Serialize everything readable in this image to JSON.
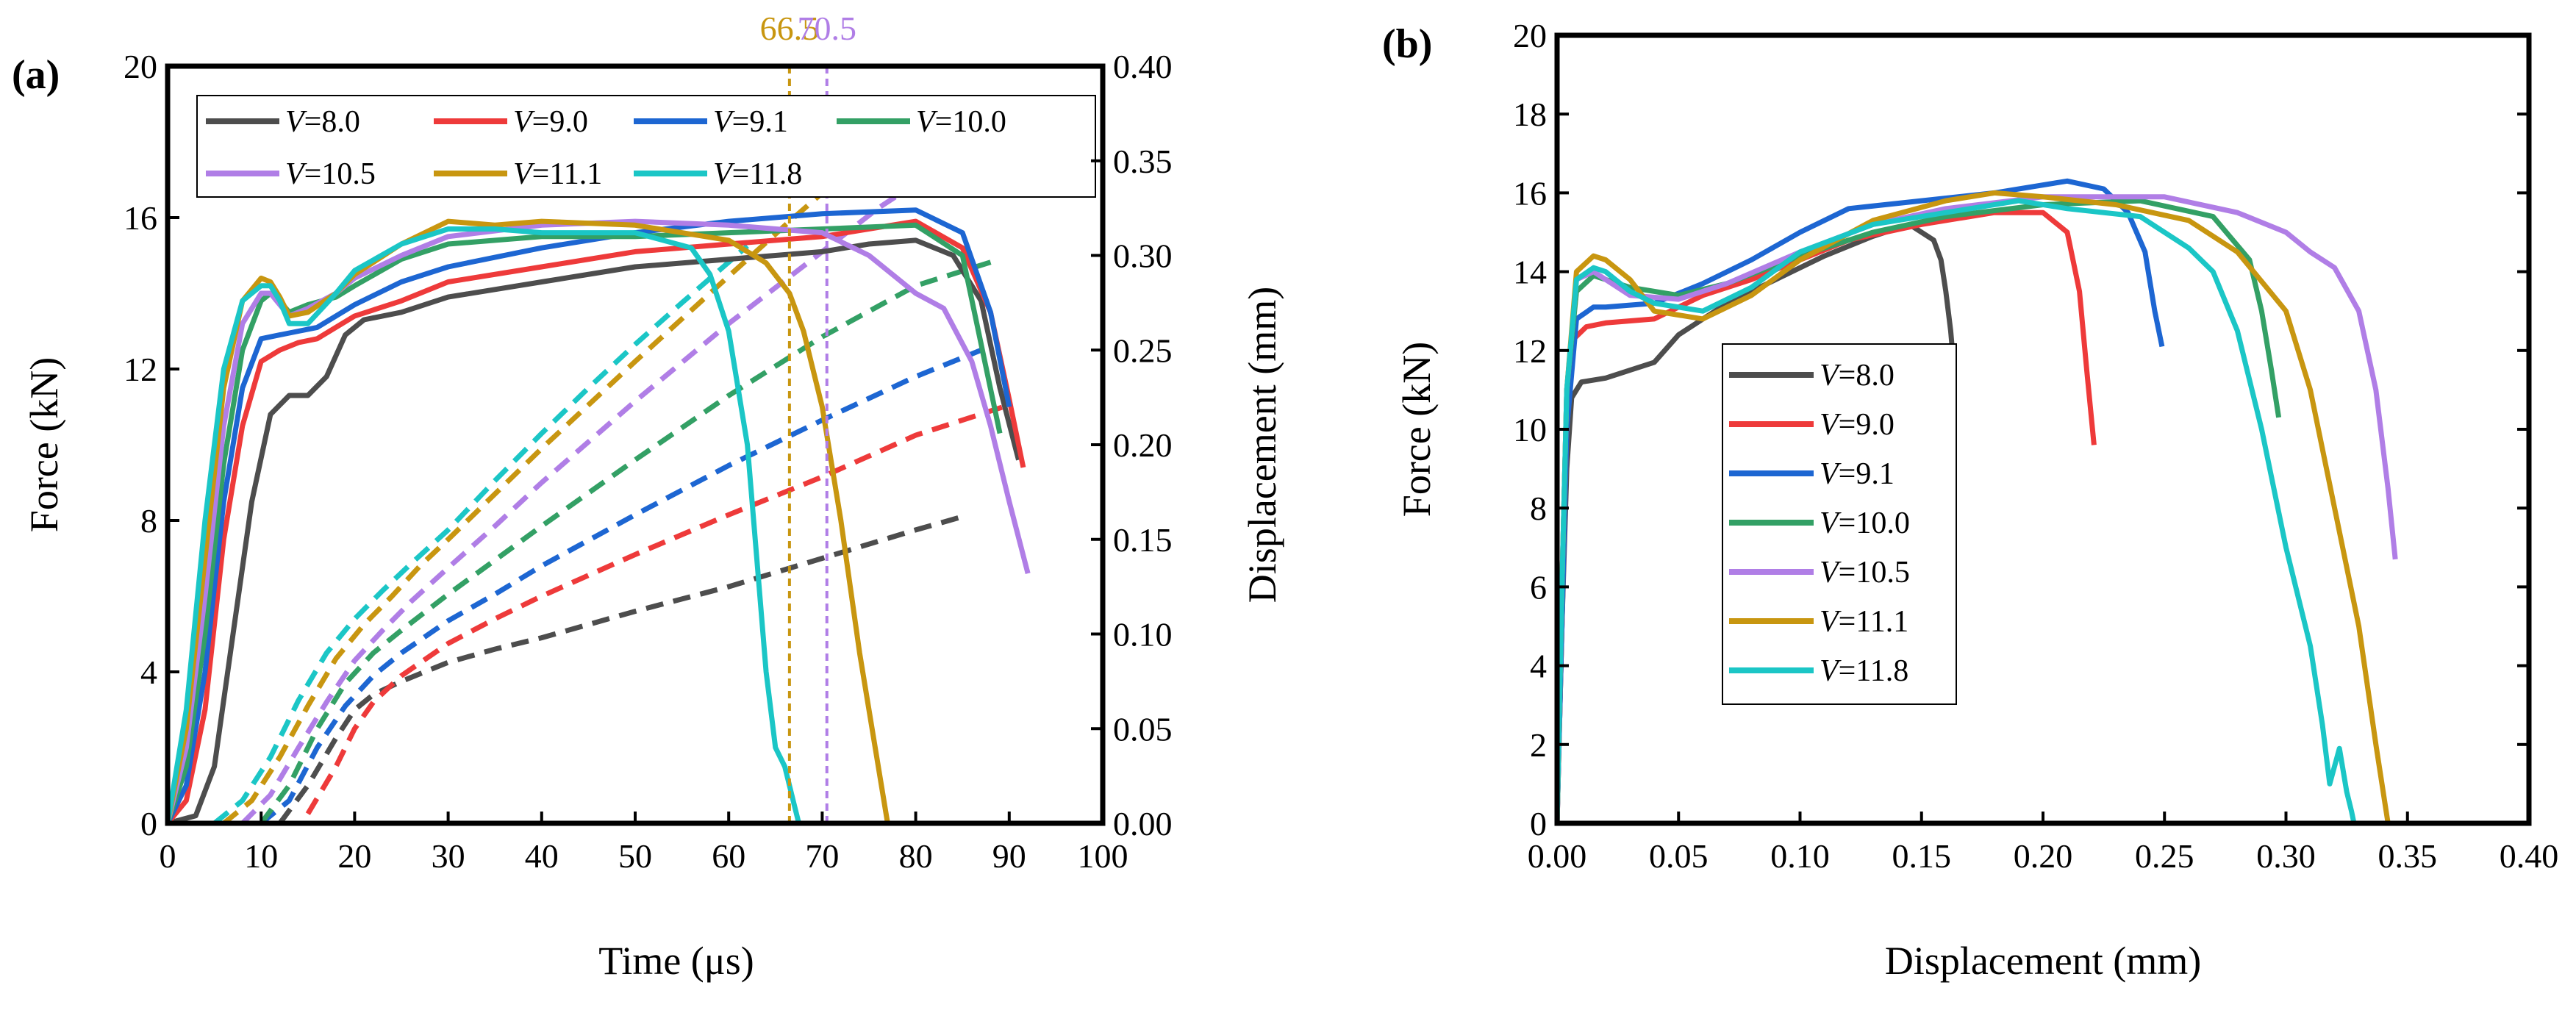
{
  "panels": [
    "(a)",
    "(b)"
  ],
  "legend_prefix": "V",
  "colors": {
    "8.0": "#4d4d4d",
    "9.0": "#ee3a3a",
    "9.1": "#1d66d2",
    "10.0": "#33a065",
    "10.5": "#b07ee6",
    "11.1": "#c89610",
    "11.8": "#1bc6c6"
  },
  "chart_data": [
    {
      "type": "line",
      "panel": "(a)",
      "xlabel": "Time (μs)",
      "ylabel": "Force (kN)",
      "y2label": "Displacement (mm)",
      "xlim": [
        0,
        100
      ],
      "ylim": [
        0,
        20
      ],
      "y2lim": [
        0,
        0.4
      ],
      "xticks": [
        "0",
        "10",
        "20",
        "30",
        "40",
        "50",
        "60",
        "70",
        "80",
        "90",
        "100"
      ],
      "yticks": [
        "0",
        "4",
        "8",
        "12",
        "16",
        "20"
      ],
      "y2ticks": [
        "0.00",
        "0.05",
        "0.10",
        "0.15",
        "0.20",
        "0.25",
        "0.30",
        "0.35",
        "0.40"
      ],
      "legend": [
        "8.0",
        "9.0",
        "9.1",
        "10.0",
        "10.5",
        "11.1",
        "11.8"
      ],
      "markers": [
        {
          "x": 66.5,
          "label": "66.5",
          "series": "11.1"
        },
        {
          "x": 70.5,
          "label": "70.5",
          "series": "10.5"
        }
      ],
      "series": [
        {
          "name": "8.0",
          "style": "solid-force",
          "x": [
            0,
            3,
            5,
            7,
            9,
            11,
            13,
            15,
            17,
            19,
            21,
            25,
            30,
            40,
            50,
            60,
            70,
            75,
            80,
            84,
            87,
            89,
            91
          ],
          "y": [
            0,
            0.2,
            1.5,
            5,
            8.5,
            10.8,
            11.3,
            11.3,
            11.8,
            12.9,
            13.3,
            13.5,
            13.9,
            14.3,
            14.7,
            14.9,
            15.1,
            15.3,
            15.4,
            15.0,
            13.8,
            11.5,
            9.6
          ]
        },
        {
          "name": "9.0",
          "style": "solid-force",
          "x": [
            0,
            2,
            4,
            6,
            8,
            10,
            12,
            14,
            16,
            20,
            25,
            30,
            40,
            50,
            60,
            70,
            80,
            85,
            88,
            90,
            91.5
          ],
          "y": [
            0,
            0.6,
            3,
            7.5,
            10.5,
            12.2,
            12.5,
            12.7,
            12.8,
            13.4,
            13.8,
            14.3,
            14.7,
            15.1,
            15.3,
            15.5,
            15.9,
            15.2,
            13.5,
            11.2,
            9.4
          ]
        },
        {
          "name": "9.1",
          "style": "solid-force",
          "x": [
            0,
            2,
            4,
            6,
            8,
            10,
            12,
            14,
            16,
            20,
            25,
            30,
            40,
            50,
            60,
            70,
            80,
            85,
            88,
            90
          ],
          "y": [
            0,
            1,
            4,
            8.5,
            11.5,
            12.8,
            12.9,
            13.0,
            13.1,
            13.7,
            14.3,
            14.7,
            15.2,
            15.6,
            15.9,
            16.1,
            16.2,
            15.6,
            13.5,
            11.0
          ]
        },
        {
          "name": "10.0",
          "style": "solid-force",
          "x": [
            0,
            2,
            4,
            6,
            8,
            10,
            11,
            12,
            13,
            15,
            18,
            20,
            25,
            30,
            40,
            50,
            60,
            70,
            80,
            85,
            89
          ],
          "y": [
            0,
            1.5,
            5,
            9.5,
            12.5,
            13.8,
            14.0,
            13.8,
            13.5,
            13.7,
            13.9,
            14.2,
            14.9,
            15.3,
            15.5,
            15.5,
            15.6,
            15.7,
            15.8,
            15.0,
            10.3
          ]
        },
        {
          "name": "10.5",
          "style": "solid-force",
          "x": [
            0,
            2,
            4,
            6,
            8,
            10,
            11,
            12,
            13,
            15,
            18,
            20,
            25,
            30,
            40,
            50,
            60,
            70,
            75,
            80,
            83,
            86,
            88,
            90,
            92
          ],
          "y": [
            0,
            2,
            6,
            10.5,
            13.2,
            14.0,
            14.0,
            13.7,
            13.4,
            13.6,
            14.0,
            14.4,
            15.0,
            15.5,
            15.8,
            15.9,
            15.8,
            15.6,
            15.0,
            14.0,
            13.6,
            12.2,
            10.5,
            8.5,
            6.6
          ]
        },
        {
          "name": "11.1",
          "style": "solid-force",
          "x": [
            0,
            2,
            4,
            6,
            8,
            10,
            11,
            12,
            13,
            15,
            18,
            20,
            25,
            30,
            35,
            40,
            50,
            60,
            64,
            66.5,
            68,
            70,
            72,
            74,
            76,
            77
          ],
          "y": [
            0,
            2.5,
            7,
            11.5,
            13.8,
            14.4,
            14.3,
            13.9,
            13.4,
            13.5,
            14.0,
            14.5,
            15.3,
            15.9,
            15.8,
            15.9,
            15.8,
            15.4,
            14.8,
            14.0,
            13.0,
            11.0,
            8.0,
            4.5,
            1.5,
            0
          ]
        },
        {
          "name": "11.8",
          "style": "solid-force",
          "x": [
            0,
            2,
            4,
            6,
            8,
            10,
            11,
            12,
            13,
            15,
            18,
            20,
            25,
            30,
            35,
            40,
            50,
            56,
            58,
            60,
            62,
            63,
            64,
            65,
            66,
            67,
            67.5
          ],
          "y": [
            0,
            3,
            8,
            12,
            13.8,
            14.2,
            14.2,
            13.8,
            13.2,
            13.2,
            14.0,
            14.6,
            15.3,
            15.7,
            15.7,
            15.6,
            15.6,
            15.2,
            14.5,
            13.0,
            10.0,
            7.0,
            4.0,
            2.0,
            1.5,
            0.5,
            0
          ]
        },
        {
          "name": "8.0",
          "style": "dashed-displacement",
          "x": [
            12,
            15,
            18,
            20,
            22,
            25,
            30,
            35,
            40,
            50,
            60,
            70,
            80,
            85
          ],
          "y": [
            0,
            0.02,
            0.045,
            0.06,
            0.068,
            0.075,
            0.085,
            0.092,
            0.098,
            0.112,
            0.125,
            0.14,
            0.155,
            0.162
          ]
        },
        {
          "name": "9.0",
          "style": "dashed-displacement",
          "x": [
            15,
            18,
            20,
            22,
            25,
            30,
            35,
            40,
            50,
            60,
            70,
            80,
            90
          ],
          "y": [
            0.005,
            0.03,
            0.05,
            0.064,
            0.078,
            0.095,
            0.108,
            0.12,
            0.142,
            0.163,
            0.183,
            0.205,
            0.221
          ]
        },
        {
          "name": "9.1",
          "style": "dashed-displacement",
          "x": [
            10,
            13,
            16,
            19,
            22,
            25,
            30,
            35,
            40,
            50,
            60,
            70,
            80,
            87
          ],
          "y": [
            0,
            0.012,
            0.04,
            0.062,
            0.078,
            0.09,
            0.107,
            0.121,
            0.136,
            0.163,
            0.189,
            0.213,
            0.236,
            0.25
          ]
        },
        {
          "name": "10.0",
          "style": "dashed-displacement",
          "x": [
            10,
            13,
            16,
            19,
            22,
            25,
            30,
            35,
            40,
            50,
            60,
            70,
            80,
            89
          ],
          "y": [
            0,
            0.02,
            0.05,
            0.074,
            0.09,
            0.102,
            0.121,
            0.139,
            0.157,
            0.192,
            0.226,
            0.257,
            0.284,
            0.298
          ]
        },
        {
          "name": "10.5",
          "style": "dashed-displacement",
          "x": [
            8,
            11,
            14,
            17,
            20,
            23,
            26,
            30,
            35,
            40,
            50,
            60,
            70,
            76,
            80
          ],
          "y": [
            0,
            0.015,
            0.04,
            0.064,
            0.086,
            0.102,
            0.117,
            0.135,
            0.157,
            0.18,
            0.223,
            0.264,
            0.302,
            0.325,
            0.338
          ]
        },
        {
          "name": "11.1",
          "style": "dashed-displacement",
          "x": [
            6,
            9,
            12,
            15,
            18,
            21,
            24,
            27,
            30,
            35,
            40,
            50,
            60,
            66.5,
            70,
            73
          ],
          "y": [
            0,
            0.012,
            0.035,
            0.062,
            0.087,
            0.105,
            0.12,
            0.136,
            0.15,
            0.174,
            0.198,
            0.244,
            0.289,
            0.318,
            0.333,
            0.346
          ]
        },
        {
          "name": "11.8",
          "style": "dashed-displacement",
          "x": [
            5,
            8,
            11,
            14,
            17,
            20,
            23,
            26,
            30,
            35,
            40,
            45,
            50,
            55,
            62
          ],
          "y": [
            0,
            0.012,
            0.035,
            0.065,
            0.09,
            0.108,
            0.123,
            0.137,
            0.155,
            0.181,
            0.206,
            0.23,
            0.253,
            0.275,
            0.305
          ]
        }
      ]
    },
    {
      "type": "line",
      "panel": "(b)",
      "xlabel": "Displacement (mm)",
      "ylabel": "Force (kN)",
      "xlim": [
        0,
        0.4
      ],
      "ylim": [
        0,
        20
      ],
      "xticks": [
        "0.00",
        "0.05",
        "0.10",
        "0.15",
        "0.20",
        "0.25",
        "0.30",
        "0.35",
        "0.40"
      ],
      "yticks": [
        "0",
        "2",
        "4",
        "6",
        "8",
        "10",
        "12",
        "14",
        "16",
        "18",
        "20"
      ],
      "legend": [
        "8.0",
        "9.0",
        "9.1",
        "10.0",
        "10.5",
        "11.1",
        "11.8"
      ],
      "series": [
        {
          "name": "8.0",
          "x": [
            0,
            0.002,
            0.004,
            0.006,
            0.01,
            0.02,
            0.03,
            0.04,
            0.05,
            0.07,
            0.09,
            0.11,
            0.13,
            0.145,
            0.155,
            0.158,
            0.16,
            0.162,
            0.163
          ],
          "y": [
            0,
            5,
            9,
            10.8,
            11.2,
            11.3,
            11.5,
            11.7,
            12.4,
            13.2,
            13.8,
            14.4,
            14.9,
            15.2,
            14.8,
            14.3,
            13.5,
            12.5,
            11.8
          ]
        },
        {
          "name": "9.0",
          "x": [
            0,
            0.002,
            0.004,
            0.007,
            0.012,
            0.02,
            0.04,
            0.06,
            0.08,
            0.1,
            0.12,
            0.15,
            0.18,
            0.2,
            0.21,
            0.215,
            0.218,
            0.221
          ],
          "y": [
            0,
            5,
            10,
            12.3,
            12.6,
            12.7,
            12.8,
            13.4,
            13.8,
            14.3,
            14.8,
            15.2,
            15.5,
            15.5,
            15.0,
            13.5,
            11.5,
            9.6
          ]
        },
        {
          "name": "9.1",
          "x": [
            0,
            0.002,
            0.004,
            0.008,
            0.015,
            0.02,
            0.04,
            0.06,
            0.08,
            0.1,
            0.12,
            0.15,
            0.18,
            0.21,
            0.225,
            0.235,
            0.242,
            0.246,
            0.249
          ],
          "y": [
            0,
            5,
            10,
            12.8,
            13.1,
            13.1,
            13.2,
            13.7,
            14.3,
            15.0,
            15.6,
            15.8,
            16.0,
            16.3,
            16.1,
            15.5,
            14.5,
            13.0,
            12.1
          ]
        },
        {
          "name": "10.0",
          "x": [
            0,
            0.002,
            0.004,
            0.008,
            0.015,
            0.02,
            0.03,
            0.05,
            0.07,
            0.1,
            0.13,
            0.16,
            0.2,
            0.24,
            0.27,
            0.285,
            0.29,
            0.294,
            0.297
          ],
          "y": [
            0,
            6,
            11,
            13.5,
            13.9,
            13.8,
            13.6,
            13.4,
            13.7,
            14.4,
            15.0,
            15.4,
            15.7,
            15.8,
            15.4,
            14.3,
            13.0,
            11.5,
            10.3
          ]
        },
        {
          "name": "10.5",
          "x": [
            0,
            0.002,
            0.004,
            0.008,
            0.015,
            0.02,
            0.03,
            0.05,
            0.07,
            0.1,
            0.13,
            0.16,
            0.2,
            0.25,
            0.28,
            0.3,
            0.31,
            0.32,
            0.33,
            0.337,
            0.342,
            0.345
          ],
          "y": [
            0,
            6,
            11,
            13.8,
            14.0,
            13.8,
            13.4,
            13.3,
            13.7,
            14.5,
            15.2,
            15.6,
            15.9,
            15.9,
            15.5,
            15.0,
            14.5,
            14.1,
            13.0,
            11.0,
            8.5,
            6.7
          ]
        },
        {
          "name": "11.1",
          "x": [
            0,
            0.002,
            0.004,
            0.008,
            0.015,
            0.02,
            0.03,
            0.04,
            0.06,
            0.08,
            0.1,
            0.13,
            0.16,
            0.18,
            0.2,
            0.23,
            0.26,
            0.28,
            0.3,
            0.31,
            0.32,
            0.33,
            0.337,
            0.342
          ],
          "y": [
            0,
            6,
            11,
            14.0,
            14.4,
            14.3,
            13.8,
            13.0,
            12.8,
            13.4,
            14.3,
            15.3,
            15.8,
            16.0,
            15.9,
            15.7,
            15.3,
            14.5,
            13.0,
            11.0,
            8.0,
            5.0,
            2.0,
            0
          ]
        },
        {
          "name": "11.8",
          "x": [
            0,
            0.002,
            0.004,
            0.008,
            0.015,
            0.02,
            0.03,
            0.04,
            0.06,
            0.08,
            0.1,
            0.13,
            0.16,
            0.19,
            0.21,
            0.24,
            0.26,
            0.27,
            0.28,
            0.29,
            0.3,
            0.31,
            0.315,
            0.318,
            0.322,
            0.325,
            0.327,
            0.328
          ],
          "y": [
            0,
            6,
            11,
            13.8,
            14.1,
            14.0,
            13.5,
            13.2,
            13.0,
            13.6,
            14.5,
            15.2,
            15.5,
            15.8,
            15.6,
            15.4,
            14.6,
            14.0,
            12.5,
            10.0,
            7.0,
            4.5,
            2.5,
            1.0,
            1.9,
            0.8,
            0.3,
            0
          ]
        }
      ]
    }
  ]
}
